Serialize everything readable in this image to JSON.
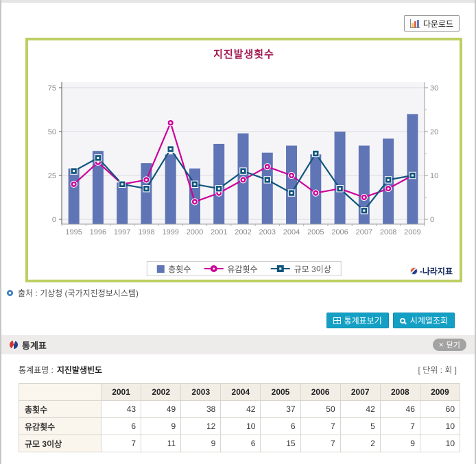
{
  "page": {
    "download_label": "다운로드"
  },
  "chart_data": {
    "type": "bar",
    "title": "지진발생횟수",
    "categories": [
      "1995",
      "1996",
      "1997",
      "1998",
      "1999",
      "2000",
      "2001",
      "2002",
      "2003",
      "2004",
      "2005",
      "2006",
      "2007",
      "2008",
      "2009"
    ],
    "series": [
      {
        "name": "총횟수",
        "type": "bar",
        "axis": "left",
        "marker": "square-swatch",
        "color": "#6075b5",
        "values": [
          29,
          39,
          21,
          32,
          37,
          29,
          43,
          49,
          38,
          42,
          37,
          50,
          42,
          46,
          60
        ]
      },
      {
        "name": "유감횟수",
        "type": "line",
        "axis": "right",
        "marker": "circle",
        "color": "#cc0099",
        "values": [
          8,
          13,
          8,
          9,
          22,
          4,
          6,
          9,
          12,
          10,
          6,
          7,
          5,
          7,
          10
        ]
      },
      {
        "name": "규모 3이상",
        "type": "line",
        "axis": "right",
        "marker": "square",
        "color": "#11557c",
        "values": [
          11,
          14,
          8,
          7,
          16,
          8,
          7,
          11,
          9,
          6,
          15,
          7,
          2,
          9,
          10
        ]
      }
    ],
    "xlabel": "",
    "ylabel": "",
    "left_axis": {
      "ticks": [
        0,
        25,
        50,
        75
      ],
      "min": 0,
      "max": 75
    },
    "right_axis": {
      "ticks": [
        0,
        10,
        20,
        30
      ],
      "min": 0,
      "max": 30
    },
    "grid": true,
    "legend_position": "bottom"
  },
  "chart": {
    "logo": "-나라지표"
  },
  "source": {
    "text": "출처 : 기상청 (국가지진정보시스템)"
  },
  "actions": {
    "view_table": "통계표보기",
    "time_series": "시계열조회"
  },
  "stats": {
    "title": "통계표",
    "close_icon": "×",
    "close_label": "닫기",
    "meta_label": "통계표명 :",
    "table_name": "지진발생빈도",
    "unit": "[ 단위 : 회 ]",
    "table": {
      "columns": [
        "2001",
        "2002",
        "2003",
        "2004",
        "2005",
        "2006",
        "2007",
        "2008",
        "2009"
      ],
      "rows": [
        {
          "label": "총횟수",
          "values": [
            43,
            49,
            38,
            42,
            37,
            50,
            42,
            46,
            60
          ]
        },
        {
          "label": "유감횟수",
          "values": [
            6,
            9,
            12,
            10,
            6,
            7,
            5,
            7,
            10
          ]
        },
        {
          "label": "규모 3이상",
          "values": [
            7,
            11,
            9,
            6,
            15,
            7,
            2,
            9,
            10
          ]
        }
      ]
    }
  },
  "colors": {
    "chart_border": "#bccf63",
    "chart_title": "#a11a4f",
    "bar": "#6075b5",
    "line_felt": "#cc0099",
    "line_mag3": "#11557c",
    "action_button": "#14a0c4",
    "section_bar_bg": "#eeeceb",
    "table_header_bg": "#f2eee6",
    "table_label_bg": "#faf5ed"
  }
}
